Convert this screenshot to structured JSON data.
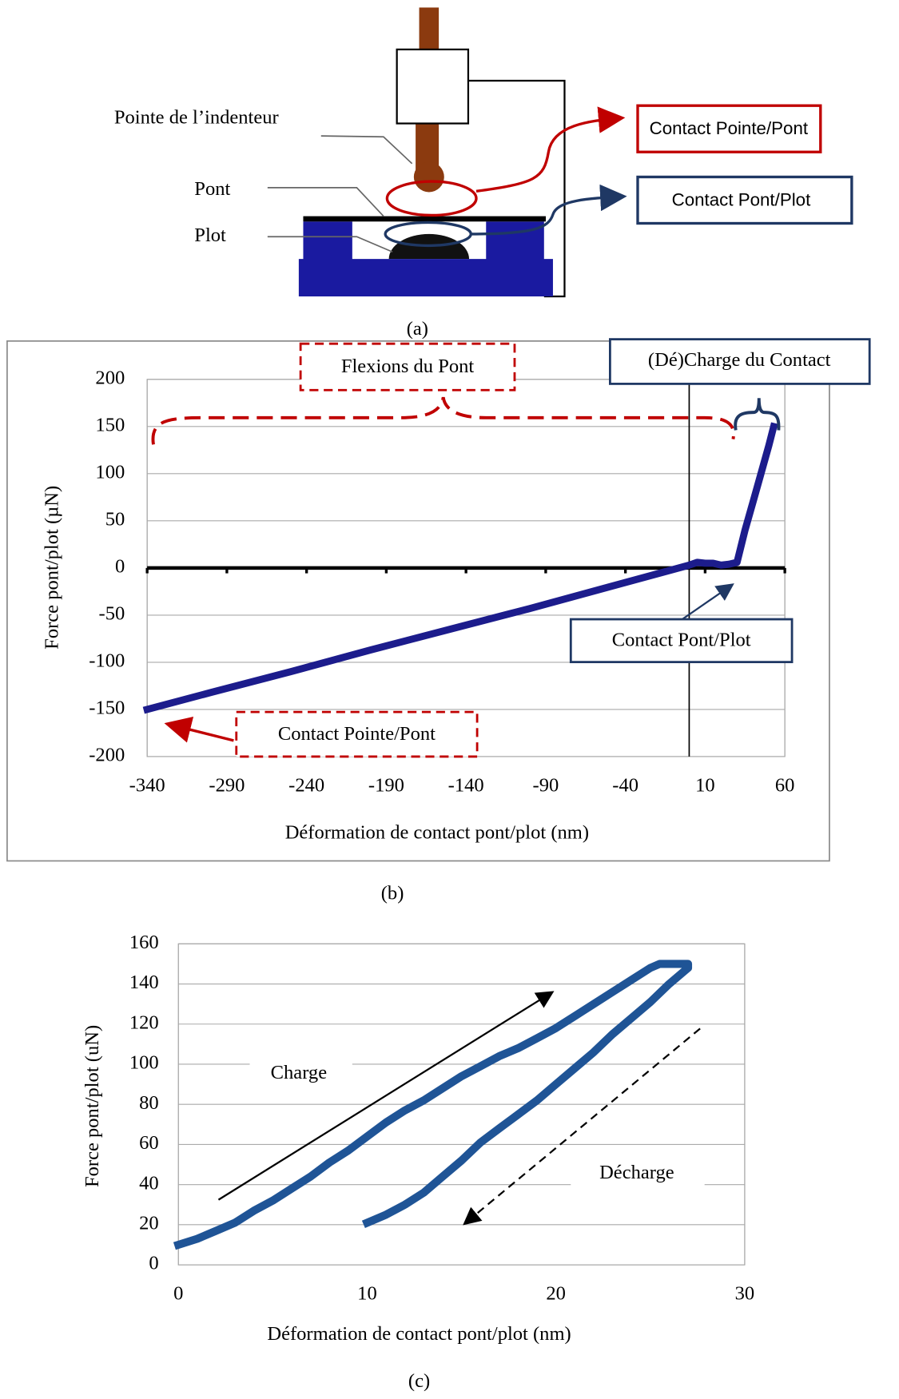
{
  "diagram": {
    "labels": [
      "Pointe de l’indenteur",
      "Pont",
      "Plot"
    ],
    "callouts": [
      "Contact Pointe/Pont",
      "Contact Pont/Plot"
    ],
    "caption": "(a)"
  },
  "chart_data": [
    {
      "type": "line",
      "x_label": "Déformation de contact pont/plot (nm)",
      "y_label": "Force  pont/plot  (µN)",
      "x": [
        -340,
        -300,
        -250,
        -200,
        -150,
        -100,
        -50,
        0,
        5,
        10,
        15,
        20,
        25,
        30,
        35,
        40,
        45,
        50,
        53,
        null,
        -310
      ],
      "values": [
        -150,
        -132,
        -110,
        -87,
        -65,
        -43,
        -20,
        3,
        6,
        5,
        5,
        3,
        4,
        6,
        40,
        70,
        100,
        130,
        150,
        null,
        -153
      ],
      "color": "#1c1c8c",
      "xlim": [
        -340,
        60
      ],
      "xticks": [
        -340,
        -290,
        -240,
        -190,
        -140,
        -90,
        -40,
        10,
        60
      ],
      "ylim": [
        -200,
        200
      ],
      "yticks": [
        -200,
        -150,
        -100,
        -50,
        0,
        50,
        100,
        150,
        200
      ],
      "grid": true,
      "annotations": [
        "Flexions du Pont",
        "(Dé)Charge du Contact",
        "Contact Pont/Plot",
        "Contact Pointe/Pont"
      ],
      "caption": "(b)"
    },
    {
      "type": "line",
      "x_label": "Déformation de contact pont/plot (nm)",
      "y_label": "Force pont/plot (uN)",
      "x": [
        0,
        1,
        2,
        3,
        4,
        5,
        6,
        7,
        8,
        9,
        10,
        11,
        12,
        13,
        14,
        15,
        16,
        17,
        18,
        19,
        20,
        21,
        22,
        23,
        24,
        25,
        25.5,
        27,
        27,
        26,
        25,
        24,
        23,
        22,
        21,
        20,
        19,
        18,
        17,
        16,
        15,
        14,
        13,
        12,
        11,
        10
      ],
      "values": [
        10,
        13,
        17,
        21,
        27,
        32,
        38,
        44,
        51,
        57,
        64,
        71,
        77,
        82,
        88,
        94,
        99,
        104,
        108,
        113,
        118,
        124,
        130,
        136,
        142,
        148,
        150,
        150,
        148,
        140,
        131,
        123,
        115,
        106,
        98,
        90,
        82,
        75,
        68,
        61,
        52,
        44,
        36,
        30,
        25,
        21
      ],
      "color": "#1f5496",
      "xlim": [
        0,
        30
      ],
      "xticks": [
        0,
        10,
        20,
        30
      ],
      "ylim": [
        0,
        160
      ],
      "yticks": [
        0,
        20,
        40,
        60,
        80,
        100,
        120,
        140,
        160
      ],
      "grid": true,
      "annotations": [
        "Charge",
        "Décharge"
      ],
      "caption": "(c)"
    }
  ]
}
